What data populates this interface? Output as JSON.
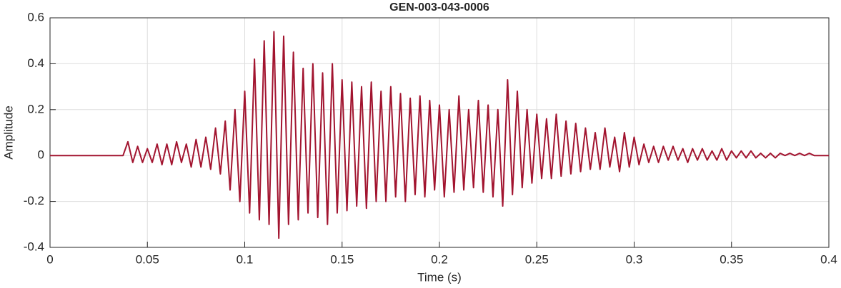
{
  "chart_data": {
    "type": "line",
    "title": "GEN-003-043-0006",
    "xlabel": "Time (s)",
    "ylabel": "Amplitude",
    "color": "#a2142f",
    "grid": true,
    "xlim": [
      0,
      0.4
    ],
    "ylim": [
      -0.4,
      0.6
    ],
    "xticks": [
      0,
      0.05,
      0.1,
      0.15,
      0.2,
      0.25,
      0.3,
      0.35,
      0.4
    ],
    "yticks": [
      -0.4,
      -0.2,
      0,
      0.2,
      0.4,
      0.6
    ],
    "x": [
      0,
      0.0025,
      0.005,
      0.0075,
      0.01,
      0.0125,
      0.015,
      0.0175,
      0.02,
      0.0225,
      0.025,
      0.0275,
      0.03,
      0.0325,
      0.035,
      0.0375,
      0.04,
      0.0425,
      0.045,
      0.0475,
      0.05,
      0.0525,
      0.055,
      0.0575,
      0.06,
      0.0625,
      0.065,
      0.0675,
      0.07,
      0.0725,
      0.075,
      0.0775,
      0.08,
      0.0825,
      0.085,
      0.0875,
      0.09,
      0.0925,
      0.095,
      0.0975,
      0.1,
      0.1025,
      0.105,
      0.1075,
      0.11,
      0.1125,
      0.115,
      0.1175,
      0.12,
      0.1225,
      0.125,
      0.1275,
      0.13,
      0.1325,
      0.135,
      0.1375,
      0.14,
      0.1425,
      0.145,
      0.1475,
      0.15,
      0.1525,
      0.155,
      0.1575,
      0.16,
      0.1625,
      0.165,
      0.1675,
      0.17,
      0.1725,
      0.175,
      0.1775,
      0.18,
      0.1825,
      0.185,
      0.1875,
      0.19,
      0.1925,
      0.195,
      0.1975,
      0.2,
      0.2025,
      0.205,
      0.2075,
      0.21,
      0.2125,
      0.215,
      0.2175,
      0.22,
      0.2225,
      0.225,
      0.2275,
      0.23,
      0.2325,
      0.235,
      0.2375,
      0.24,
      0.2425,
      0.245,
      0.2475,
      0.25,
      0.2525,
      0.255,
      0.2575,
      0.26,
      0.2625,
      0.265,
      0.2675,
      0.27,
      0.2725,
      0.275,
      0.2775,
      0.28,
      0.2825,
      0.285,
      0.2875,
      0.29,
      0.2925,
      0.295,
      0.2975,
      0.3,
      0.3025,
      0.305,
      0.3075,
      0.31,
      0.3125,
      0.315,
      0.3175,
      0.32,
      0.3225,
      0.325,
      0.3275,
      0.33,
      0.3325,
      0.335,
      0.3375,
      0.34,
      0.3425,
      0.345,
      0.3475,
      0.35,
      0.3525,
      0.355,
      0.3575,
      0.36,
      0.3625,
      0.365,
      0.3675,
      0.37,
      0.3725,
      0.375,
      0.3775,
      0.38,
      0.3825,
      0.385,
      0.3875,
      0.39,
      0.3925,
      0.395,
      0.3975,
      0.4
    ],
    "values": [
      0,
      0,
      0,
      0,
      0,
      0,
      0,
      0,
      0,
      0,
      0,
      0,
      0,
      0,
      0,
      0,
      0.06,
      -0.03,
      0.04,
      -0.03,
      0.03,
      -0.03,
      0.05,
      -0.04,
      0.05,
      -0.04,
      0.06,
      -0.03,
      0.05,
      -0.05,
      0.07,
      -0.05,
      0.08,
      -0.06,
      0.12,
      -0.08,
      0.15,
      -0.15,
      0.2,
      -0.2,
      0.28,
      -0.25,
      0.42,
      -0.28,
      0.5,
      -0.3,
      0.54,
      -0.36,
      0.52,
      -0.3,
      0.45,
      -0.28,
      0.38,
      -0.25,
      0.4,
      -0.27,
      0.36,
      -0.3,
      0.4,
      -0.25,
      0.33,
      -0.24,
      0.32,
      -0.22,
      0.3,
      -0.23,
      0.32,
      -0.2,
      0.28,
      -0.2,
      0.3,
      -0.18,
      0.27,
      -0.2,
      0.25,
      -0.17,
      0.26,
      -0.18,
      0.24,
      -0.15,
      0.22,
      -0.18,
      0.2,
      -0.16,
      0.26,
      -0.15,
      0.2,
      -0.14,
      0.24,
      -0.16,
      0.22,
      -0.18,
      0.2,
      -0.22,
      0.33,
      -0.17,
      0.28,
      -0.14,
      0.2,
      -0.12,
      0.18,
      -0.1,
      0.16,
      -0.1,
      0.18,
      -0.09,
      0.15,
      -0.08,
      0.14,
      -0.07,
      0.12,
      -0.06,
      0.1,
      -0.06,
      0.12,
      -0.05,
      0.08,
      -0.07,
      0.1,
      -0.05,
      0.08,
      -0.04,
      0.05,
      -0.03,
      0.04,
      -0.03,
      0.04,
      -0.02,
      0.04,
      -0.02,
      0.03,
      -0.03,
      0.03,
      -0.02,
      0.03,
      -0.02,
      0.02,
      -0.02,
      0.03,
      -0.02,
      0.02,
      -0.01,
      0.02,
      -0.01,
      0.02,
      -0.01,
      0.01,
      -0.01,
      0.01,
      -0.01,
      0.01,
      0,
      0.01,
      0,
      0.01,
      0,
      0.01,
      0,
      0,
      0,
      0
    ]
  }
}
